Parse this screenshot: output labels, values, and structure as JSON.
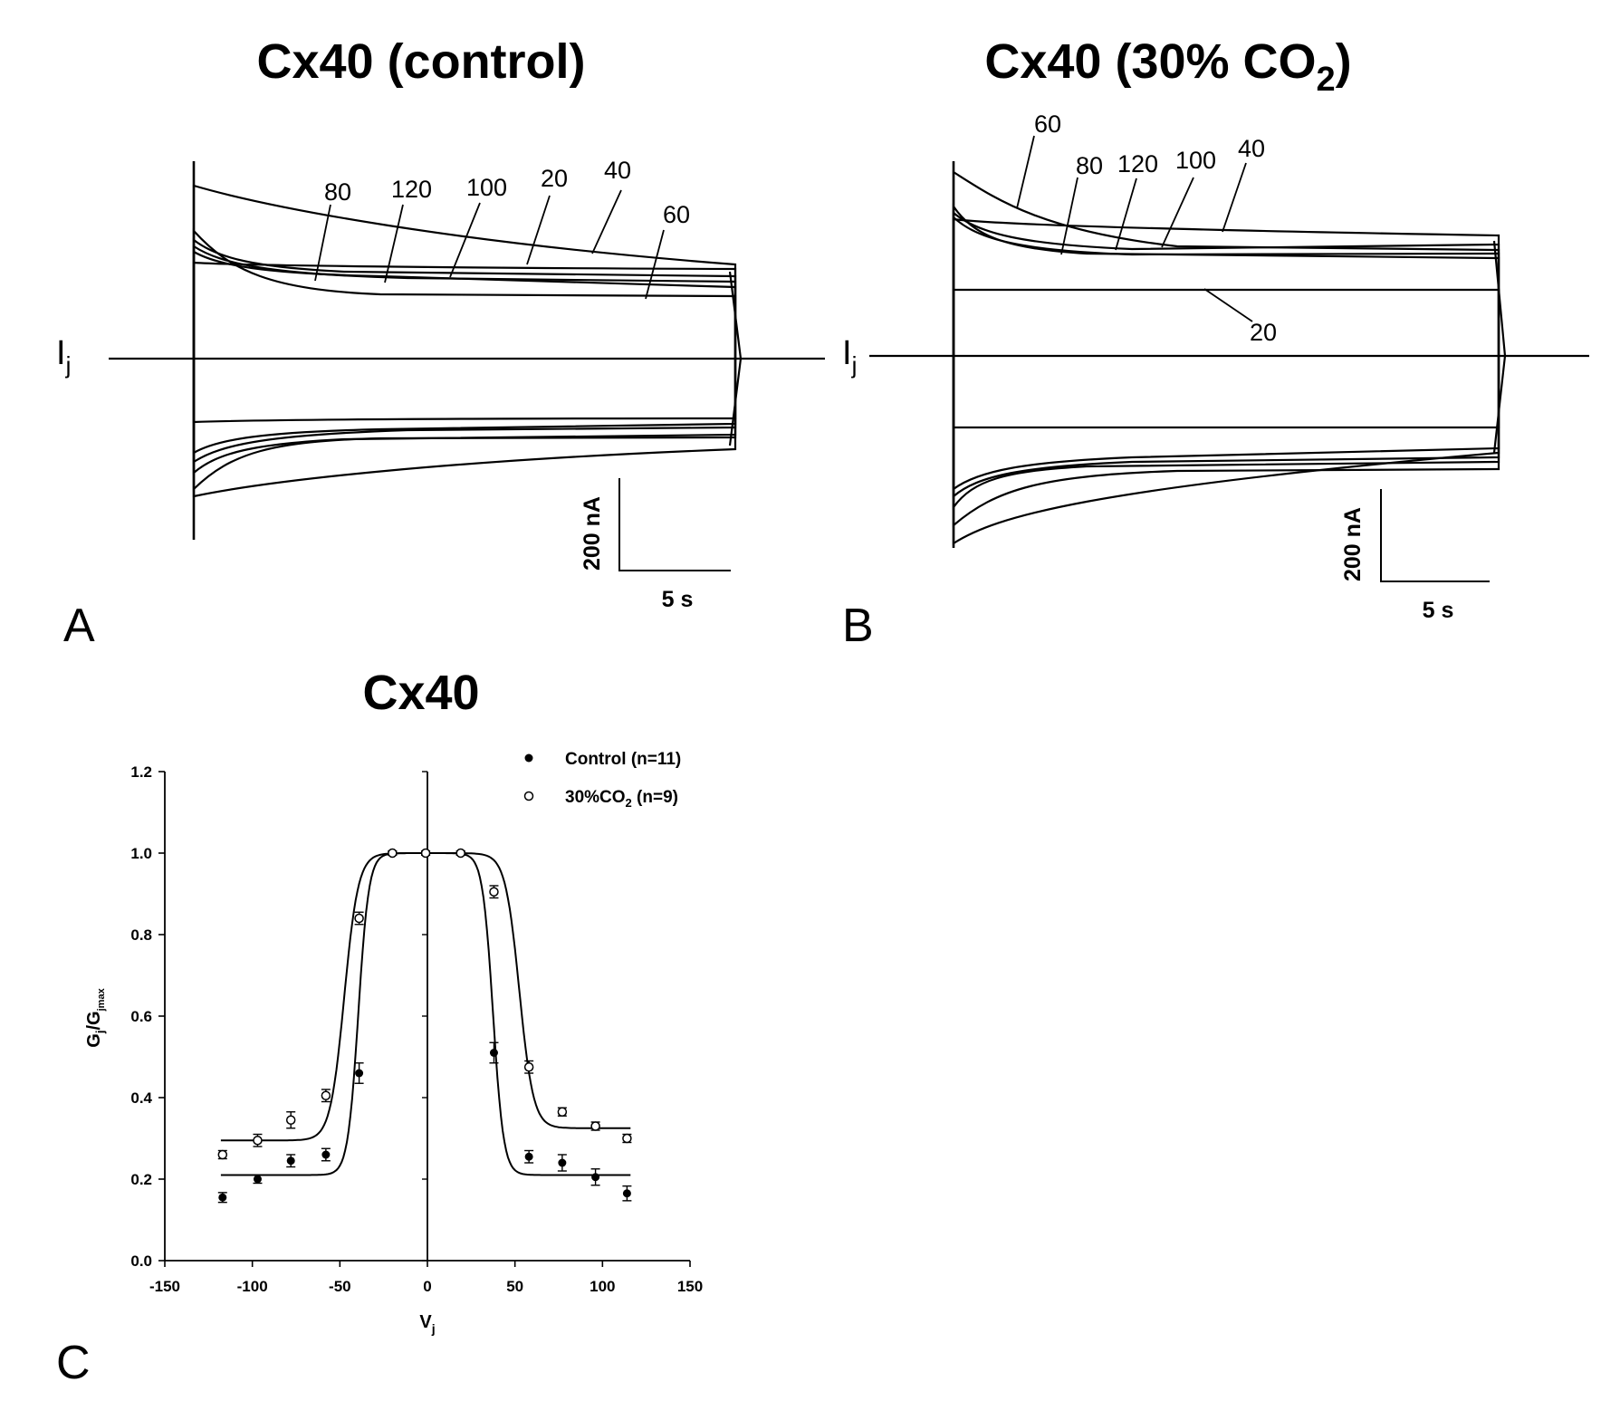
{
  "panel_a": {
    "letter": "A",
    "title": "Cx40 (control)",
    "current_label": "I",
    "current_label_sub": "j",
    "trace_labels": [
      "80",
      "120",
      "100",
      "20",
      "40",
      "60"
    ],
    "scale_current": "200 nA",
    "scale_time": "5 s"
  },
  "panel_b": {
    "letter": "B",
    "title_main": "Cx40 (30% CO",
    "title_sub": "2",
    "title_end": ")",
    "current_label": "I",
    "current_label_sub": "j",
    "trace_labels": [
      "60",
      "80",
      "120",
      "100",
      "40",
      "20"
    ],
    "scale_current": "200 nA",
    "scale_time": "5 s"
  },
  "panel_c": {
    "letter": "C",
    "title": "Cx40"
  },
  "chart_data": {
    "type": "scatter",
    "title": "Cx40",
    "xlabel": "V",
    "xlabel_sub": "j",
    "ylabel": "G",
    "ylabel_sub": "j",
    "ylabel_mid": "/G",
    "ylabel_sub2": "jmax",
    "xlim": [
      -150,
      150
    ],
    "ylim": [
      0.0,
      1.2
    ],
    "x_ticks": [
      -150,
      -100,
      -50,
      0,
      50,
      100,
      150
    ],
    "x_tick_labels": [
      "-150",
      "-100",
      "-50",
      "0",
      "50",
      "100",
      "150"
    ],
    "y_ticks": [
      0.0,
      0.2,
      0.4,
      0.6,
      0.8,
      1.0,
      1.2
    ],
    "y_tick_labels": [
      "0.0",
      "0.2",
      "0.4",
      "0.6",
      "0.8",
      "1.0",
      "1.2"
    ],
    "legend_position": "top-right",
    "series": [
      {
        "name": "Control (n=11)",
        "marker": "filled",
        "x": [
          -117,
          -97,
          -78,
          -58,
          -39,
          -20,
          -1,
          19,
          38,
          58,
          77,
          96,
          114
        ],
        "y": [
          0.155,
          0.2,
          0.245,
          0.26,
          0.46,
          1.0,
          1.0,
          1.0,
          0.51,
          0.255,
          0.24,
          0.205,
          0.165
        ],
        "err": [
          0.012,
          0.01,
          0.015,
          0.015,
          0.025,
          0.005,
          0.005,
          0.005,
          0.025,
          0.015,
          0.02,
          0.02,
          0.018
        ],
        "fit": {
          "gmin": 0.21,
          "v0_neg": -39.5,
          "v0_pos": 37.5,
          "k": 3.0
        }
      },
      {
        "name": "30%CO",
        "name_sub": "2",
        "name_end": " (n=9)",
        "marker": "open",
        "x": [
          -117,
          -97,
          -78,
          -58,
          -39,
          -20,
          -1,
          19,
          38,
          58,
          77,
          96,
          114
        ],
        "y": [
          0.26,
          0.295,
          0.345,
          0.405,
          0.84,
          1.0,
          1.0,
          1.0,
          0.905,
          0.475,
          0.365,
          0.33,
          0.3
        ],
        "err": [
          0.01,
          0.015,
          0.02,
          0.015,
          0.015,
          0.005,
          0.005,
          0.005,
          0.015,
          0.015,
          0.01,
          0.01,
          0.01
        ],
        "fit": {
          "gmin_neg": 0.295,
          "gmin_pos": 0.325,
          "v0_neg": -47.5,
          "v0_pos": 52.5,
          "k": 4.0
        }
      }
    ]
  }
}
